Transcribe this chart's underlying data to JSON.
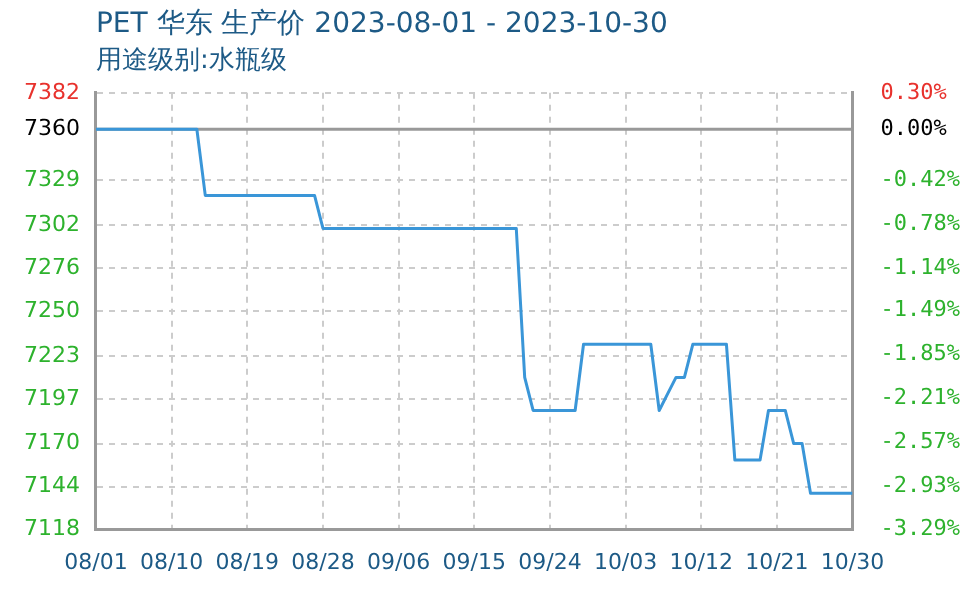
{
  "chart_data": {
    "type": "line",
    "title": "PET 华东 生产价 2023-08-01 - 2023-10-30",
    "subtitle": "用途级别:水瓶级",
    "x": [
      "2023-08-01",
      "2023-08-13",
      "2023-08-14",
      "2023-08-27",
      "2023-08-28",
      "2023-09-20",
      "2023-09-21",
      "2023-09-22",
      "2023-09-27",
      "2023-09-28",
      "2023-10-06",
      "2023-10-07",
      "2023-10-08",
      "2023-10-09",
      "2023-10-10",
      "2023-10-11",
      "2023-10-15",
      "2023-10-16",
      "2023-10-19",
      "2023-10-20",
      "2023-10-22",
      "2023-10-23",
      "2023-10-24",
      "2023-10-25",
      "2023-10-30"
    ],
    "series": [
      {
        "color": "#3a96d8",
        "values": [
          7360,
          7360,
          7320,
          7320,
          7300,
          7300,
          7210,
          7190,
          7190,
          7230,
          7230,
          7190,
          7200,
          7210,
          7210,
          7230,
          7230,
          7160,
          7160,
          7190,
          7190,
          7170,
          7170,
          7140,
          7140
        ]
      }
    ],
    "xlim": [
      "2023-08-01",
      "2023-10-30"
    ],
    "xticks": [
      {
        "value": "2023-08-01",
        "label": "08/01"
      },
      {
        "value": "2023-08-10",
        "label": "08/10"
      },
      {
        "value": "2023-08-19",
        "label": "08/19"
      },
      {
        "value": "2023-08-28",
        "label": "08/28"
      },
      {
        "value": "2023-09-06",
        "label": "09/06"
      },
      {
        "value": "2023-09-15",
        "label": "09/15"
      },
      {
        "value": "2023-09-24",
        "label": "09/24"
      },
      {
        "value": "2023-10-03",
        "label": "10/03"
      },
      {
        "value": "2023-10-12",
        "label": "10/12"
      },
      {
        "value": "2023-10-21",
        "label": "10/21"
      },
      {
        "value": "2023-10-30",
        "label": "10/30"
      }
    ],
    "ylim": [
      7118,
      7382
    ],
    "yticks": [
      7118,
      7144,
      7170,
      7197,
      7223,
      7250,
      7276,
      7302,
      7329,
      7360,
      7382
    ],
    "y2lim": [
      -3.29,
      0.3
    ],
    "y2ticks": [
      {
        "value": -3.29,
        "label": "-3.29%"
      },
      {
        "value": -2.93,
        "label": "-2.93%"
      },
      {
        "value": -2.57,
        "label": "-2.57%"
      },
      {
        "value": -2.21,
        "label": "-2.21%"
      },
      {
        "value": -1.85,
        "label": "-1.85%"
      },
      {
        "value": -1.49,
        "label": "-1.49%"
      },
      {
        "value": -1.14,
        "label": "-1.14%"
      },
      {
        "value": -0.78,
        "label": "-0.78%"
      },
      {
        "value": -0.42,
        "label": "-0.42%"
      },
      {
        "value": 0,
        "label": "0.00%"
      },
      {
        "value": 0.3,
        "label": "0.30%"
      }
    ],
    "ref_lines": [
      {
        "axis": "y",
        "value": 7360,
        "color": "#999999"
      }
    ],
    "grid": true,
    "legend": false,
    "marker": "none",
    "line_style": "solid"
  }
}
